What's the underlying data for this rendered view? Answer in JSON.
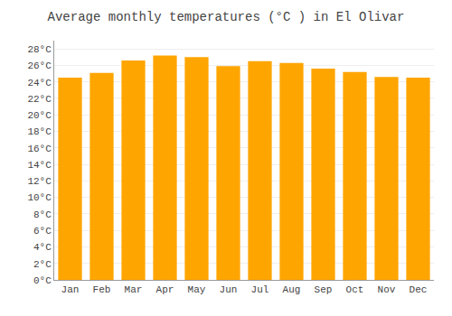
{
  "chart_data": {
    "type": "bar",
    "title": "Average monthly temperatures (°C ) in El Olivar",
    "categories": [
      "Jan",
      "Feb",
      "Mar",
      "Apr",
      "May",
      "Jun",
      "Jul",
      "Aug",
      "Sep",
      "Oct",
      "Nov",
      "Dec"
    ],
    "values": [
      24.5,
      25.1,
      26.6,
      27.2,
      27.0,
      25.9,
      26.5,
      26.3,
      25.6,
      25.2,
      24.6,
      24.5
    ],
    "color": "#FFA500",
    "ylim": [
      0,
      29
    ],
    "yticks": [
      {
        "value": 0,
        "label": "0°C"
      },
      {
        "value": 2,
        "label": "2°C"
      },
      {
        "value": 4,
        "label": "4°C"
      },
      {
        "value": 6,
        "label": "6°C"
      },
      {
        "value": 8,
        "label": "8°C"
      },
      {
        "value": 10,
        "label": "10°C"
      },
      {
        "value": 12,
        "label": "12°C"
      },
      {
        "value": 14,
        "label": "14°C"
      },
      {
        "value": 16,
        "label": "16°C"
      },
      {
        "value": 18,
        "label": "18°C"
      },
      {
        "value": 20,
        "label": "20°C"
      },
      {
        "value": 22,
        "label": "22°C"
      },
      {
        "value": 24,
        "label": "24°C"
      },
      {
        "value": 26,
        "label": "26°C"
      },
      {
        "value": 28,
        "label": "28°C"
      }
    ],
    "grid": true
  }
}
